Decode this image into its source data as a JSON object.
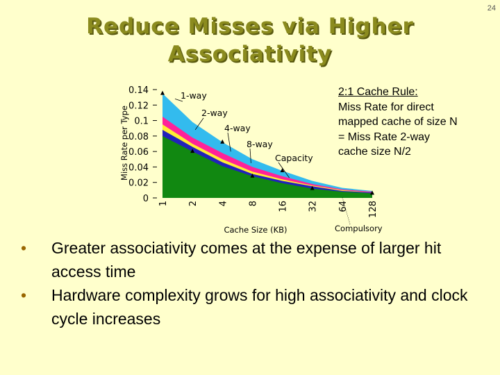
{
  "slide_number": "24",
  "title": {
    "line1": "Reduce Misses via Higher",
    "line2": "Associativity"
  },
  "rule": {
    "heading": "2:1 Cache Rule:",
    "body": "Miss Rate for direct\nmapped cache of size N\n= Miss Rate 2-way\n   cache size N/2"
  },
  "bullets": [
    "Greater associativity comes at the expense of larger hit access time",
    "Hardware complexity grows for high associativity and clock cycle increases"
  ],
  "colors": {
    "background": "#ffffcc",
    "title": "#8b8b1e",
    "one_way": "#33bbee",
    "two_way": "#ff2299",
    "four_way": "#ffee33",
    "eight_way": "#2222bb",
    "capacity": "#118811"
  },
  "chart_data": {
    "type": "area",
    "xlabel": "Cache Size (KB)",
    "ylabel": "Miss Rate per Type",
    "ylim": [
      0,
      0.14
    ],
    "y_ticks": [
      "0",
      "0.02",
      "0.04",
      "0.06",
      "0.08",
      "0.1",
      "0.12",
      "0.14"
    ],
    "y_values": [
      0,
      0.02,
      0.04,
      0.06,
      0.08,
      0.1,
      0.12,
      0.14
    ],
    "categories": [
      "1",
      "2",
      "4",
      "8",
      "16",
      "32",
      "64",
      "128"
    ],
    "series": [
      {
        "name": "1-way",
        "values": [
          0.135,
          0.098,
          0.072,
          0.05,
          0.035,
          0.022,
          0.013,
          0.009
        ]
      },
      {
        "name": "2-way",
        "values": [
          0.105,
          0.078,
          0.058,
          0.04,
          0.028,
          0.018,
          0.011,
          0.008
        ]
      },
      {
        "name": "4-way",
        "values": [
          0.095,
          0.07,
          0.05,
          0.034,
          0.024,
          0.016,
          0.01,
          0.007
        ]
      },
      {
        "name": "8-way",
        "values": [
          0.088,
          0.066,
          0.046,
          0.031,
          0.022,
          0.015,
          0.009,
          0.007
        ]
      },
      {
        "name": "Capacity",
        "values": [
          0.08,
          0.06,
          0.041,
          0.028,
          0.019,
          0.012,
          0.008,
          0.006
        ]
      }
    ],
    "annotations": [
      "Compulsory"
    ],
    "grid": false,
    "legend": "inline-labels"
  }
}
